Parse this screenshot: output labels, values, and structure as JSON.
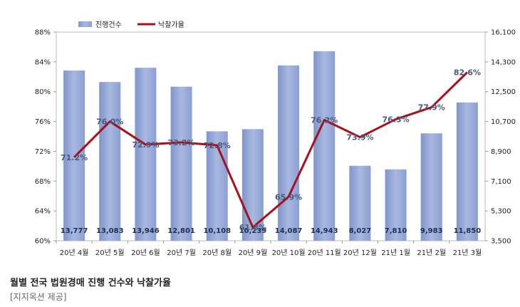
{
  "chart_data": {
    "type": "bar",
    "categories": [
      "20년 4월",
      "20년 5월",
      "20년 6월",
      "20년 7월",
      "20년 8월",
      "20년 9월",
      "20년 10월",
      "20년 11월",
      "20년 12월",
      "21년 1월",
      "21년 2월",
      "21년 3월"
    ],
    "series": [
      {
        "name": "진행건수",
        "type": "bar",
        "axis": "right",
        "color": "#8da0d0",
        "values": [
          13777,
          13083,
          13946,
          12801,
          10108,
          10239,
          14087,
          14943,
          8027,
          7810,
          9983,
          11850
        ],
        "labels": [
          "13,777",
          "13,083",
          "13,946",
          "12,801",
          "10,108",
          "10,239",
          "14,087",
          "14,943",
          "8,027",
          "7,810",
          "9,983",
          "11,850"
        ]
      },
      {
        "name": "낙찰가율",
        "type": "line",
        "axis": "left",
        "color": "#a8101c",
        "values": [
          71.2,
          76.0,
          72.9,
          73.2,
          72.8,
          61.8,
          65.9,
          76.2,
          73.9,
          76.3,
          77.9,
          82.6
        ],
        "labels": [
          "71.2%",
          "76.0%",
          "72.9%",
          "73.2%",
          "72.8%",
          "61.8%",
          "65.9%",
          "76.2%",
          "73.9%",
          "76.3%",
          "77.9%",
          "82.6%"
        ]
      }
    ],
    "left_axis": {
      "min": 60,
      "max": 88,
      "ticks": [
        "60%",
        "64%",
        "68%",
        "72%",
        "76%",
        "80%",
        "84%",
        "88%"
      ]
    },
    "right_axis": {
      "min": 3500,
      "max": 16100,
      "ticks": [
        "3,500",
        "5,300",
        "7,100",
        "8,900",
        "10,700",
        "12,500",
        "14,300",
        "16,100"
      ]
    },
    "grid": false,
    "legend": "top-left"
  },
  "caption": "월별 전국 법원경매 진행 건수와 낙찰가율",
  "source": "[지지옥션 제공]"
}
